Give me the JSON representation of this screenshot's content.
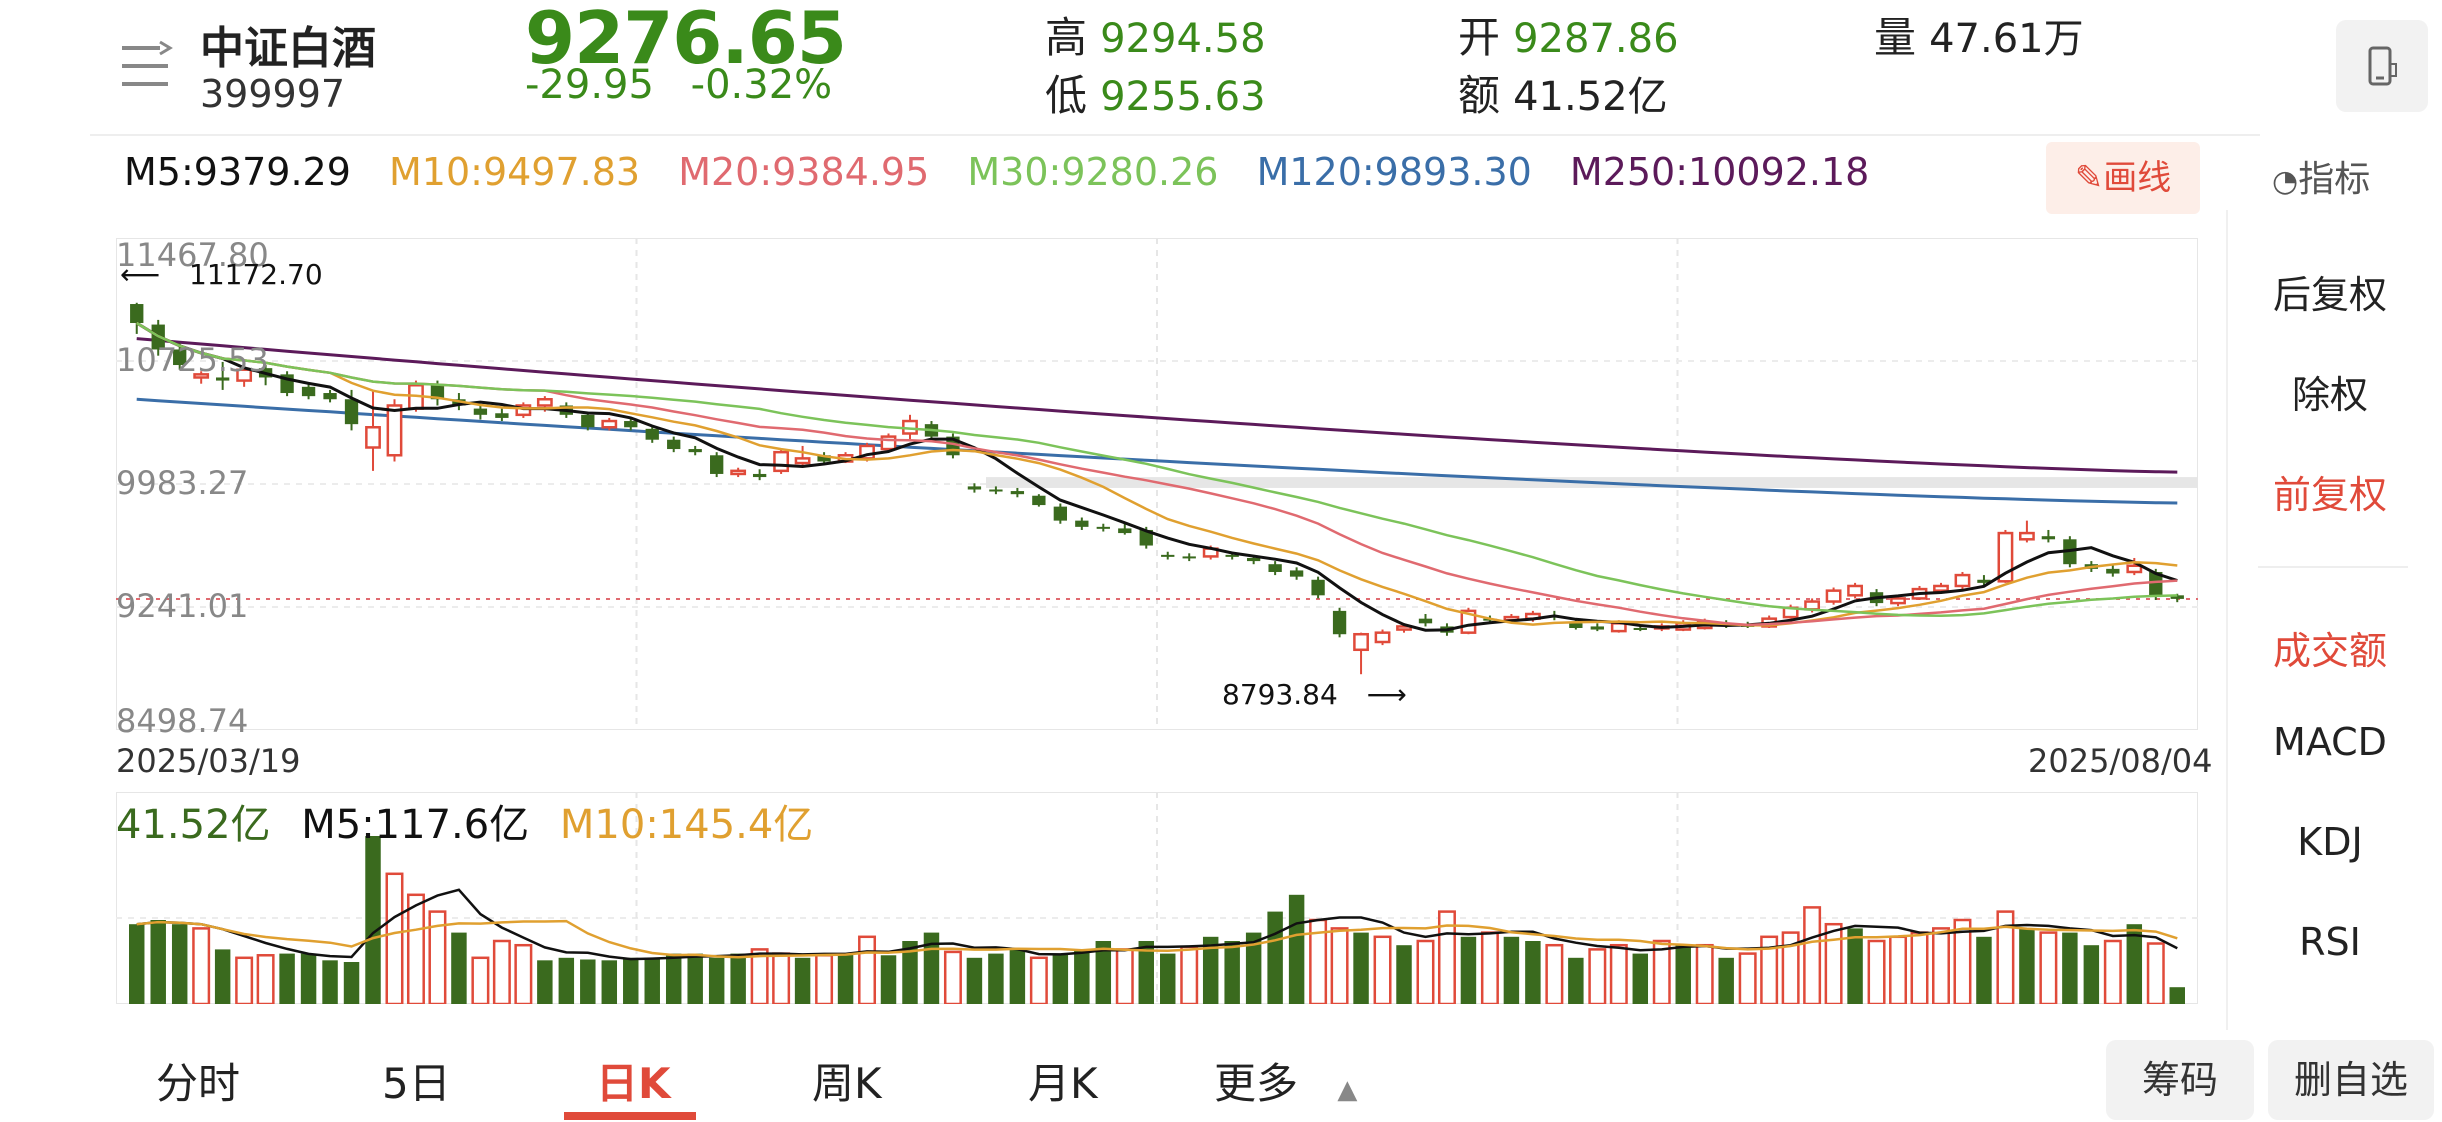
{
  "header": {
    "name": "中证白酒",
    "code": "399997",
    "price": "9276.65",
    "change": "-29.95",
    "change_pct": "-0.32%",
    "high_label": "高",
    "high": "9294.58",
    "low_label": "低",
    "low": "9255.63",
    "open_label": "开",
    "open": "9287.86",
    "amount_label": "额",
    "amount": "41.52亿",
    "volume_label": "量",
    "volume": "47.61万"
  },
  "ma_legend": [
    {
      "label": "M5:9379.29",
      "color": "#111111"
    },
    {
      "label": "M10:9497.83",
      "color": "#e0a030"
    },
    {
      "label": "M20:9384.95",
      "color": "#e06a70"
    },
    {
      "label": "M30:9280.26",
      "color": "#7cc35a"
    },
    {
      "label": "M120:9893.30",
      "color": "#3a6ea8"
    },
    {
      "label": "M250:10092.18",
      "color": "#5c1a5a"
    }
  ],
  "toolbar": {
    "draw_label": "画线",
    "indicator_label": "指标"
  },
  "side_menu": [
    "后复权",
    "除权",
    "前复权",
    "成交额",
    "MACD",
    "KDJ",
    "RSI"
  ],
  "y_axis": [
    "11467.80",
    "10725.53",
    "9983.27",
    "9241.01",
    "8498.74"
  ],
  "dates": {
    "start": "2025/03/19",
    "end": "2025/08/04"
  },
  "annotations": {
    "high": "11172.70",
    "low": "8793.84"
  },
  "volume_legend": {
    "current": "41.52亿",
    "current_color": "#3a6a1e",
    "m5": "M5:117.6亿",
    "m5_color": "#111111",
    "m10": "M10:145.4亿",
    "m10_color": "#e0a030"
  },
  "tabs": [
    "分时",
    "5日",
    "日K",
    "周K",
    "月K",
    "更多"
  ],
  "buttons": {
    "chips": "筹码",
    "remove": "删自选"
  },
  "colors": {
    "up": "#e04a3a",
    "down": "#3a6a1e",
    "accent": "#e04a3a"
  },
  "chart_data": {
    "type": "candlestick",
    "ylim": [
      8498.74,
      11467.8
    ],
    "candles": [
      [
        11172,
        11050,
        11180,
        10980
      ],
      [
        11040,
        10880,
        11070,
        10840
      ],
      [
        10880,
        10780,
        10920,
        10750
      ],
      [
        10700,
        10720,
        10740,
        10660
      ],
      [
        10700,
        10680,
        10800,
        10620
      ],
      [
        10680,
        10750,
        10770,
        10640
      ],
      [
        10760,
        10700,
        10780,
        10650
      ],
      [
        10720,
        10600,
        10740,
        10580
      ],
      [
        10640,
        10580,
        10660,
        10560
      ],
      [
        10600,
        10560,
        10620,
        10540
      ],
      [
        10560,
        10400,
        10620,
        10360
      ],
      [
        10250,
        10380,
        10620,
        10100
      ],
      [
        10200,
        10520,
        10560,
        10160
      ],
      [
        10500,
        10650,
        10680,
        10480
      ],
      [
        10650,
        10560,
        10680,
        10520
      ],
      [
        10560,
        10520,
        10600,
        10490
      ],
      [
        10500,
        10460,
        10520,
        10430
      ],
      [
        10470,
        10440,
        10500,
        10420
      ],
      [
        10460,
        10520,
        10540,
        10440
      ],
      [
        10520,
        10560,
        10580,
        10480
      ],
      [
        10520,
        10460,
        10540,
        10440
      ],
      [
        10460,
        10380,
        10480,
        10360
      ],
      [
        10380,
        10420,
        10440,
        10360
      ],
      [
        10420,
        10380,
        10440,
        10360
      ],
      [
        10370,
        10300,
        10390,
        10280
      ],
      [
        10300,
        10240,
        10320,
        10220
      ],
      [
        10240,
        10220,
        10260,
        10200
      ],
      [
        10200,
        10080,
        10220,
        10060
      ],
      [
        10080,
        10100,
        10120,
        10060
      ],
      [
        10080,
        10060,
        10110,
        10040
      ],
      [
        10100,
        10220,
        10240,
        10080
      ],
      [
        10150,
        10180,
        10260,
        10130
      ],
      [
        10200,
        10160,
        10220,
        10140
      ],
      [
        10160,
        10200,
        10220,
        10150
      ],
      [
        10180,
        10260,
        10280,
        10160
      ],
      [
        10240,
        10320,
        10340,
        10220
      ],
      [
        10340,
        10420,
        10460,
        10300
      ],
      [
        10400,
        10320,
        10420,
        10300
      ],
      [
        10320,
        10200,
        10340,
        10180
      ],
      [
        10000,
        9980,
        10020,
        9960
      ],
      [
        9980,
        9970,
        10000,
        9950
      ],
      [
        9970,
        9950,
        9990,
        9930
      ],
      [
        9940,
        9880,
        9950,
        9870
      ],
      [
        9870,
        9780,
        9890,
        9760
      ],
      [
        9780,
        9740,
        9800,
        9720
      ],
      [
        9740,
        9730,
        9760,
        9710
      ],
      [
        9730,
        9700,
        9760,
        9690
      ],
      [
        9720,
        9620,
        9740,
        9600
      ],
      [
        9560,
        9550,
        9580,
        9530
      ],
      [
        9550,
        9540,
        9570,
        9520
      ],
      [
        9550,
        9600,
        9620,
        9530
      ],
      [
        9560,
        9550,
        9580,
        9530
      ],
      [
        9540,
        9520,
        9560,
        9500
      ],
      [
        9500,
        9450,
        9520,
        9430
      ],
      [
        9460,
        9420,
        9480,
        9400
      ],
      [
        9400,
        9300,
        9420,
        9280
      ],
      [
        9200,
        9050,
        9220,
        9030
      ],
      [
        8950,
        9050,
        9060,
        8793
      ],
      [
        9000,
        9060,
        9080,
        8980
      ],
      [
        9080,
        9100,
        9120,
        9060
      ],
      [
        9150,
        9120,
        9180,
        9100
      ],
      [
        9100,
        9060,
        9120,
        9040
      ],
      [
        9060,
        9200,
        9220,
        9050
      ],
      [
        9150,
        9140,
        9170,
        9120
      ],
      [
        9140,
        9160,
        9180,
        9120
      ],
      [
        9150,
        9180,
        9200,
        9130
      ],
      [
        9170,
        9160,
        9200,
        9140
      ],
      [
        9120,
        9090,
        9140,
        9080
      ],
      [
        9100,
        9080,
        9120,
        9070
      ],
      [
        9070,
        9120,
        9140,
        9060
      ],
      [
        9090,
        9080,
        9110,
        9070
      ],
      [
        9090,
        9100,
        9120,
        9070
      ],
      [
        9080,
        9120,
        9140,
        9070
      ],
      [
        9090,
        9130,
        9150,
        9080
      ],
      [
        9120,
        9100,
        9140,
        9090
      ],
      [
        9110,
        9100,
        9130,
        9090
      ],
      [
        9100,
        9150,
        9170,
        9090
      ],
      [
        9160,
        9220,
        9240,
        9150
      ],
      [
        9210,
        9260,
        9280,
        9190
      ],
      [
        9260,
        9330,
        9350,
        9240
      ],
      [
        9300,
        9360,
        9380,
        9280
      ],
      [
        9320,
        9250,
        9340,
        9230
      ],
      [
        9250,
        9280,
        9300,
        9230
      ],
      [
        9280,
        9340,
        9360,
        9270
      ],
      [
        9330,
        9360,
        9380,
        9310
      ],
      [
        9360,
        9430,
        9450,
        9340
      ],
      [
        9400,
        9380,
        9430,
        9360
      ],
      [
        9390,
        9700,
        9720,
        9380
      ],
      [
        9660,
        9700,
        9780,
        9640
      ],
      [
        9680,
        9660,
        9720,
        9640
      ],
      [
        9660,
        9500,
        9680,
        9480
      ],
      [
        9500,
        9470,
        9520,
        9450
      ],
      [
        9470,
        9440,
        9500,
        9420
      ],
      [
        9450,
        9490,
        9540,
        9430
      ],
      [
        9450,
        9300,
        9470,
        9270
      ],
      [
        9300,
        9277,
        9310,
        9256
      ]
    ],
    "volumes": [
      [
        95,
        0
      ],
      [
        100,
        0
      ],
      [
        95,
        0
      ],
      [
        90,
        1
      ],
      [
        65,
        0
      ],
      [
        55,
        1
      ],
      [
        58,
        1
      ],
      [
        60,
        0
      ],
      [
        60,
        0
      ],
      [
        52,
        0
      ],
      [
        50,
        0
      ],
      [
        200,
        0
      ],
      [
        155,
        1
      ],
      [
        130,
        1
      ],
      [
        110,
        1
      ],
      [
        85,
        0
      ],
      [
        55,
        1
      ],
      [
        75,
        1
      ],
      [
        70,
        1
      ],
      [
        52,
        0
      ],
      [
        55,
        0
      ],
      [
        53,
        0
      ],
      [
        52,
        0
      ],
      [
        55,
        0
      ],
      [
        55,
        0
      ],
      [
        60,
        0
      ],
      [
        60,
        0
      ],
      [
        55,
        0
      ],
      [
        60,
        0
      ],
      [
        65,
        1
      ],
      [
        60,
        1
      ],
      [
        55,
        0
      ],
      [
        58,
        1
      ],
      [
        60,
        0
      ],
      [
        80,
        1
      ],
      [
        58,
        0
      ],
      [
        75,
        0
      ],
      [
        85,
        0
      ],
      [
        62,
        1
      ],
      [
        55,
        0
      ],
      [
        60,
        0
      ],
      [
        65,
        0
      ],
      [
        55,
        1
      ],
      [
        60,
        0
      ],
      [
        65,
        0
      ],
      [
        75,
        0
      ],
      [
        65,
        1
      ],
      [
        75,
        0
      ],
      [
        60,
        0
      ],
      [
        68,
        1
      ],
      [
        80,
        0
      ],
      [
        75,
        0
      ],
      [
        85,
        0
      ],
      [
        110,
        0
      ],
      [
        130,
        0
      ],
      [
        100,
        1
      ],
      [
        90,
        1
      ],
      [
        85,
        0
      ],
      [
        80,
        1
      ],
      [
        70,
        0
      ],
      [
        75,
        1
      ],
      [
        110,
        1
      ],
      [
        80,
        0
      ],
      [
        85,
        1
      ],
      [
        80,
        0
      ],
      [
        75,
        0
      ],
      [
        70,
        1
      ],
      [
        55,
        0
      ],
      [
        65,
        1
      ],
      [
        70,
        1
      ],
      [
        60,
        0
      ],
      [
        75,
        1
      ],
      [
        70,
        0
      ],
      [
        70,
        1
      ],
      [
        55,
        0
      ],
      [
        60,
        1
      ],
      [
        80,
        1
      ],
      [
        85,
        1
      ],
      [
        115,
        1
      ],
      [
        95,
        1
      ],
      [
        90,
        0
      ],
      [
        75,
        1
      ],
      [
        80,
        1
      ],
      [
        85,
        1
      ],
      [
        90,
        1
      ],
      [
        100,
        1
      ],
      [
        80,
        0
      ],
      [
        110,
        1
      ],
      [
        90,
        0
      ],
      [
        85,
        1
      ],
      [
        85,
        0
      ],
      [
        70,
        0
      ],
      [
        75,
        1
      ],
      [
        95,
        0
      ],
      [
        72,
        1
      ],
      [
        20,
        0
      ]
    ]
  }
}
